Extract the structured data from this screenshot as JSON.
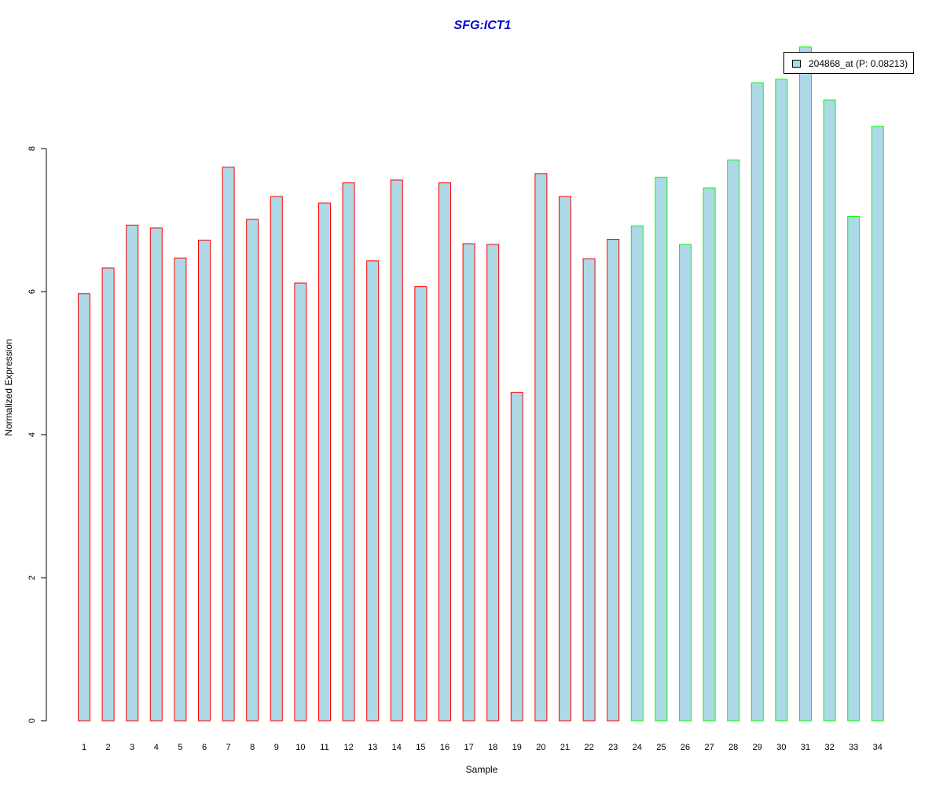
{
  "chart_data": {
    "type": "bar",
    "title": "SFG:ICT1",
    "xlabel": "Sample",
    "ylabel": "Normalized Expression",
    "ylim": [
      0,
      9.5
    ],
    "yticks": [
      "0",
      "2",
      "4",
      "6",
      "8"
    ],
    "categories": [
      "1",
      "2",
      "3",
      "4",
      "5",
      "6",
      "7",
      "8",
      "9",
      "10",
      "11",
      "12",
      "13",
      "14",
      "15",
      "16",
      "17",
      "18",
      "19",
      "20",
      "21",
      "22",
      "23",
      "24",
      "25",
      "26",
      "27",
      "28",
      "29",
      "30",
      "31",
      "32",
      "33",
      "34"
    ],
    "values": [
      5.97,
      6.33,
      6.93,
      6.89,
      6.47,
      6.72,
      7.74,
      7.01,
      7.33,
      6.12,
      7.24,
      7.52,
      6.43,
      7.56,
      6.07,
      7.52,
      6.67,
      6.66,
      4.59,
      7.65,
      7.33,
      6.46,
      6.73,
      6.92,
      7.6,
      6.66,
      7.45,
      7.84,
      8.92,
      8.97,
      9.42,
      8.68,
      7.05,
      8.31
    ],
    "groups": [
      "red",
      "red",
      "red",
      "red",
      "red",
      "red",
      "red",
      "red",
      "red",
      "red",
      "red",
      "red",
      "red",
      "red",
      "red",
      "red",
      "red",
      "red",
      "red",
      "red",
      "red",
      "red",
      "red",
      "green",
      "green",
      "green",
      "green",
      "green",
      "green",
      "green",
      "green",
      "green",
      "green",
      "green"
    ],
    "series": [
      {
        "name": "204868_at (P: 0.08213)"
      }
    ],
    "legend_position": "top-right",
    "grid": false,
    "colors": {
      "bar_fill": "#add8e6",
      "border_red": "#ff0000",
      "border_green": "#00ff00",
      "title": "#0000cd",
      "axis": "#000000"
    }
  }
}
